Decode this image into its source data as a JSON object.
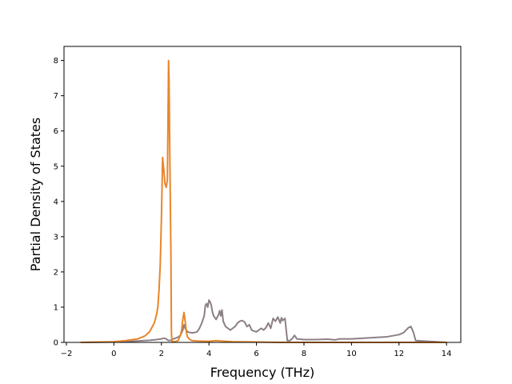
{
  "chart_data": {
    "type": "line",
    "title": "",
    "xlabel": "Frequency (THz)",
    "ylabel": "Partial Density of States",
    "xlim": [
      -2.1,
      14.6
    ],
    "ylim": [
      0,
      8.4
    ],
    "xticks": [
      "−2",
      "0",
      "2",
      "4",
      "6",
      "8",
      "10",
      "12",
      "14"
    ],
    "xtick_values": [
      -2,
      0,
      2,
      4,
      6,
      8,
      10,
      12,
      14
    ],
    "yticks": [
      "0",
      "1",
      "2",
      "3",
      "4",
      "5",
      "6",
      "7",
      "8"
    ],
    "ytick_values": [
      0,
      1,
      2,
      3,
      4,
      5,
      6,
      7,
      8
    ],
    "grid": false,
    "legend": "none",
    "series": [
      {
        "color": "#8c7f86",
        "x": [
          -1.4,
          0.0,
          0.5,
          1.0,
          1.5,
          1.8,
          2.0,
          2.1,
          2.2,
          2.3,
          2.4,
          2.5,
          2.6,
          2.7,
          2.8,
          2.9,
          2.95,
          3.0,
          3.1,
          3.2,
          3.3,
          3.4,
          3.5,
          3.6,
          3.7,
          3.8,
          3.85,
          3.9,
          3.95,
          4.0,
          4.05,
          4.1,
          4.15,
          4.2,
          4.3,
          4.4,
          4.45,
          4.5,
          4.55,
          4.6,
          4.7,
          4.8,
          4.9,
          5.0,
          5.1,
          5.2,
          5.3,
          5.4,
          5.5,
          5.6,
          5.7,
          5.8,
          5.9,
          6.0,
          6.1,
          6.2,
          6.3,
          6.4,
          6.5,
          6.6,
          6.7,
          6.8,
          6.9,
          7.0,
          7.05,
          7.1,
          7.2,
          7.3,
          7.4,
          7.5,
          7.6,
          7.7,
          8.0,
          8.5,
          9.0,
          9.3,
          9.5,
          10.0,
          10.5,
          11.0,
          11.5,
          12.0,
          12.2,
          12.3,
          12.4,
          12.5,
          12.6,
          12.7,
          14.0
        ],
        "values": [
          0.0,
          0.01,
          0.02,
          0.04,
          0.06,
          0.08,
          0.1,
          0.12,
          0.1,
          0.05,
          0.06,
          0.1,
          0.12,
          0.15,
          0.2,
          0.35,
          0.5,
          0.4,
          0.3,
          0.28,
          0.27,
          0.28,
          0.3,
          0.4,
          0.55,
          0.75,
          1.05,
          1.1,
          1.0,
          1.2,
          1.15,
          1.05,
          0.85,
          0.75,
          0.65,
          0.78,
          0.9,
          0.75,
          0.92,
          0.6,
          0.45,
          0.4,
          0.35,
          0.4,
          0.45,
          0.55,
          0.6,
          0.62,
          0.58,
          0.45,
          0.5,
          0.35,
          0.32,
          0.3,
          0.35,
          0.4,
          0.35,
          0.42,
          0.55,
          0.4,
          0.68,
          0.6,
          0.72,
          0.55,
          0.7,
          0.62,
          0.68,
          0.05,
          0.05,
          0.1,
          0.2,
          0.1,
          0.08,
          0.08,
          0.09,
          0.07,
          0.1,
          0.1,
          0.12,
          0.14,
          0.16,
          0.22,
          0.28,
          0.35,
          0.42,
          0.45,
          0.3,
          0.05,
          0.0
        ]
      },
      {
        "color": "#e8862a",
        "x": [
          -1.4,
          0.0,
          0.5,
          1.0,
          1.3,
          1.5,
          1.7,
          1.8,
          1.85,
          1.9,
          1.95,
          2.0,
          2.05,
          2.1,
          2.15,
          2.2,
          2.25,
          2.28,
          2.3,
          2.32,
          2.35,
          2.4,
          2.42,
          2.44,
          2.45,
          2.5,
          2.6,
          2.7,
          2.8,
          2.85,
          2.9,
          2.95,
          3.0,
          3.05,
          3.1,
          3.2,
          3.3,
          3.5,
          4.0,
          4.3,
          4.5,
          5.0,
          6.0,
          7.0,
          14.0
        ],
        "values": [
          0.0,
          0.02,
          0.05,
          0.1,
          0.18,
          0.3,
          0.55,
          0.8,
          1.0,
          1.5,
          2.2,
          3.5,
          5.25,
          4.9,
          4.5,
          4.4,
          4.6,
          6.5,
          8.0,
          7.5,
          5.5,
          2.5,
          0.3,
          0.05,
          0.02,
          0.02,
          0.03,
          0.05,
          0.2,
          0.35,
          0.65,
          0.85,
          0.6,
          0.3,
          0.15,
          0.08,
          0.05,
          0.04,
          0.03,
          0.05,
          0.04,
          0.02,
          0.01,
          0.0,
          0.0
        ]
      }
    ]
  }
}
